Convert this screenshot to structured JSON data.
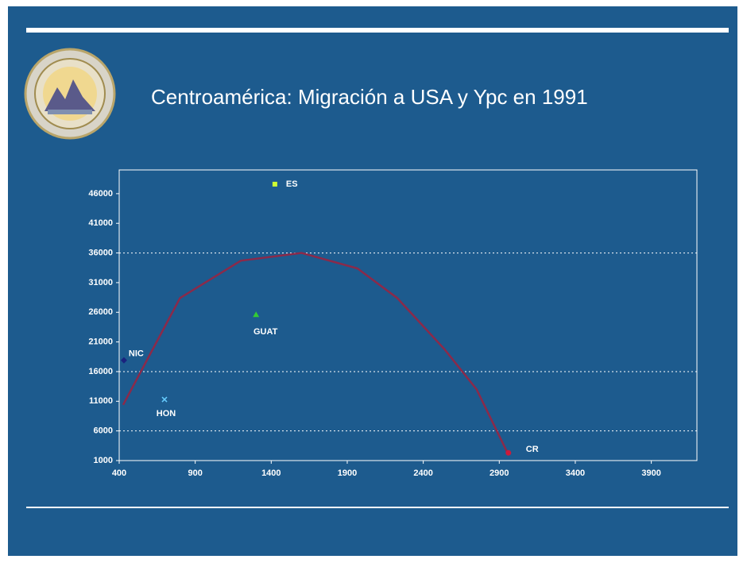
{
  "chart_data": {
    "type": "scatter",
    "title": "Centroamérica: Migración a USA y Ypc en 1991",
    "xlim": [
      400,
      4200
    ],
    "xticks": [
      400,
      900,
      1400,
      1900,
      2400,
      2900,
      3400,
      3900
    ],
    "ylim": [
      1000,
      50000
    ],
    "yticks": [
      1000,
      6000,
      11000,
      16000,
      21000,
      26000,
      31000,
      36000,
      41000,
      46000
    ],
    "grid_lines": [
      6000,
      16000,
      36000
    ],
    "points": [
      {
        "label": "ES",
        "x": 1424,
        "y": 47600,
        "color": "#ccff33",
        "marker": "square"
      },
      {
        "label": "GUAT",
        "x": 1300,
        "y": 25600,
        "color": "#33cc33",
        "marker": "triangle"
      },
      {
        "label": "NIC",
        "x": 431,
        "y": 17900,
        "color": "#1a237e",
        "marker": "diamond"
      },
      {
        "label": "HON",
        "x": 698,
        "y": 11300,
        "color": "#66ccff",
        "marker": "x"
      },
      {
        "label": "CR",
        "x": 2960,
        "y": 2300,
        "color": "#cc1a3a",
        "marker": "circle"
      }
    ],
    "trend": {
      "color": "#8b2a4a",
      "x": [
        426,
        800,
        1200,
        1600,
        1967,
        2229,
        2542,
        2751,
        2960
      ],
      "values": [
        10400,
        28400,
        34700,
        36000,
        33400,
        28400,
        19700,
        13000,
        2000
      ]
    }
  }
}
